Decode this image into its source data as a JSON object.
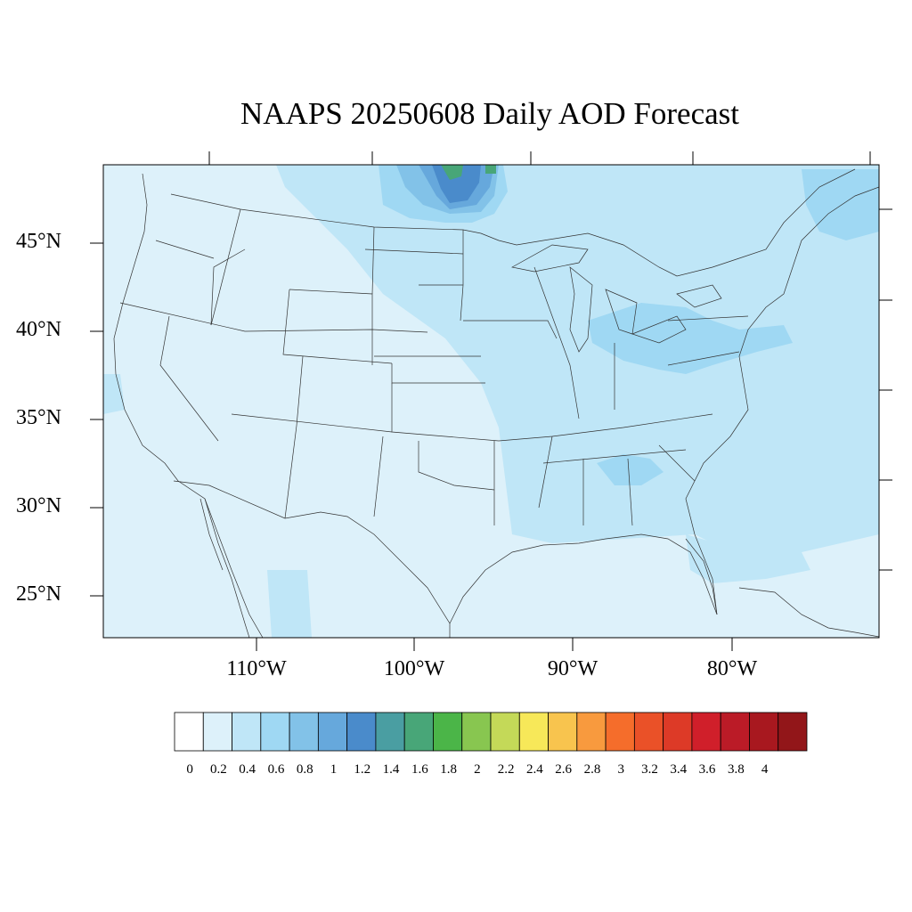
{
  "title": "NAAPS 20250608 Daily AOD Forecast",
  "lat_labels": [
    "45°N",
    "40°N",
    "35°N",
    "30°N",
    "25°N"
  ],
  "lon_labels": [
    "110°W",
    "100°W",
    "90°W",
    "80°W"
  ],
  "colorbar": {
    "tick_labels": [
      "0",
      "0.2",
      "0.4",
      "0.6",
      "0.8",
      "1",
      "1.2",
      "1.4",
      "1.6",
      "1.8",
      "2",
      "2.2",
      "2.4",
      "2.6",
      "2.8",
      "3",
      "3.2",
      "3.4",
      "3.6",
      "3.8",
      "4"
    ],
    "colors": [
      "#ffffff",
      "#ddf1fa",
      "#bfe6f7",
      "#9fd8f3",
      "#82c2e8",
      "#66a8dc",
      "#4a8bcb",
      "#4a9ea2",
      "#48a678",
      "#4bb548",
      "#88c650",
      "#c4d958",
      "#f7e859",
      "#f8c44e",
      "#f89a3e",
      "#f56d2b",
      "#ea5128",
      "#dd3a27",
      "#d01f2a",
      "#bb1b27",
      "#a8181f",
      "#921619"
    ]
  },
  "map": {
    "background_aod_color": "#ddf1fa",
    "region_colors": {
      "low": "#ddf1fa",
      "light": "#bfe6f7",
      "medium": "#9fd8f3",
      "high": "#82c2e8",
      "higher": "#66a8dc",
      "peak": "#4a8bcb",
      "green": "#48a678"
    }
  }
}
